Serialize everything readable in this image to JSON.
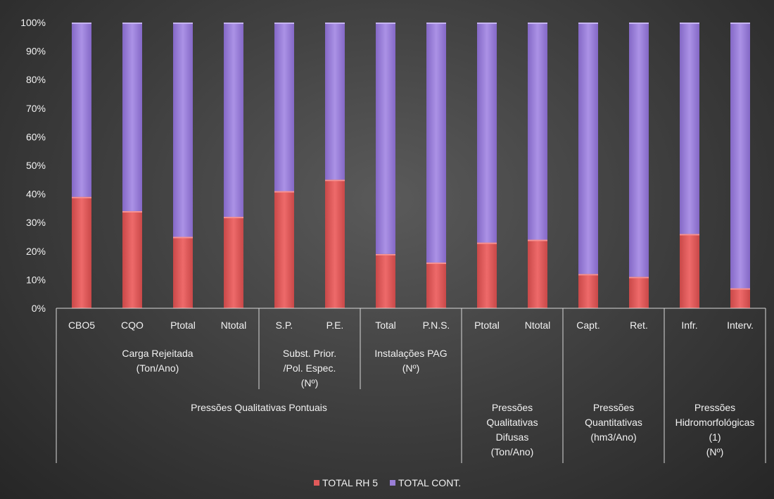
{
  "chart_data": {
    "type": "bar",
    "stacked": "percent",
    "categories": [
      "CBO5",
      "CQO",
      "Ptotal",
      "Ntotal",
      "S.P.",
      "P.E.",
      "Total",
      "P.N.S.",
      "Ptotal",
      "Ntotal",
      "Capt.",
      "Ret.",
      "Infr.",
      "Interv."
    ],
    "group_labels_level2": [
      {
        "label": "Carga Rejeitada\n(Ton/Ano)",
        "span": [
          0,
          3
        ]
      },
      {
        "label": "Subst. Prior.\n/Pol. Espec.\n(Nº)",
        "span": [
          4,
          5
        ]
      },
      {
        "label": "Instalações PAG\n(Nº)",
        "span": [
          6,
          7
        ]
      }
    ],
    "group_labels_level1": [
      {
        "label": "Pressões Qualitativas Pontuais",
        "span": [
          0,
          7
        ]
      },
      {
        "label": "Pressões\nQualitativas\nDifusas\n(Ton/Ano)",
        "span": [
          8,
          9
        ]
      },
      {
        "label": "Pressões\nQuantitativas\n(hm3/Ano)",
        "span": [
          10,
          11
        ]
      },
      {
        "label": "Pressões\nHidromorfológicas\n(1)\n(Nº)",
        "span": [
          12,
          13
        ]
      }
    ],
    "series": [
      {
        "name": "TOTAL RH 5",
        "color": "#e05a5a",
        "values": [
          39,
          34,
          25,
          32,
          41,
          45,
          19,
          16,
          23,
          24,
          12,
          11,
          26,
          7
        ]
      },
      {
        "name": "TOTAL CONT.",
        "color": "#9a7fd8",
        "values": [
          61,
          66,
          75,
          68,
          59,
          55,
          81,
          84,
          77,
          76,
          88,
          89,
          74,
          93
        ]
      }
    ],
    "y_ticks": [
      "0%",
      "10%",
      "20%",
      "30%",
      "40%",
      "50%",
      "60%",
      "70%",
      "80%",
      "90%",
      "100%"
    ],
    "ylim": [
      0,
      100
    ],
    "grid": false,
    "legend_position": "bottom"
  }
}
